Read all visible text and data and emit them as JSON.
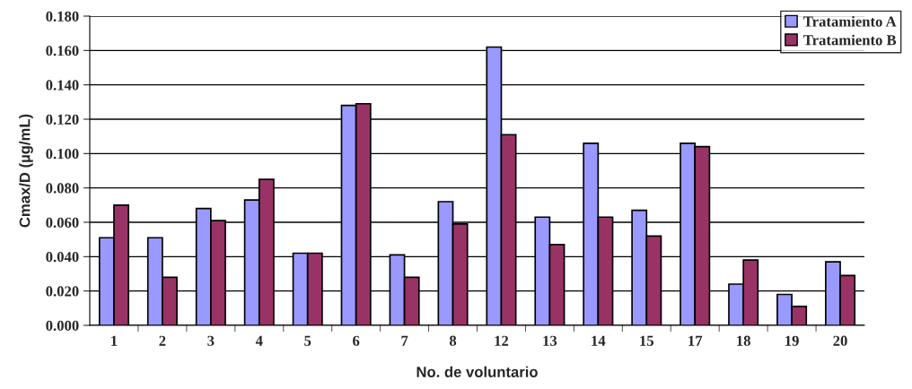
{
  "chart_data": {
    "type": "bar",
    "xlabel": "No. de voluntario",
    "ylabel": "Cmax/D (µg/mL)",
    "categories": [
      "1",
      "2",
      "3",
      "4",
      "5",
      "6",
      "7",
      "8",
      "12",
      "13",
      "14",
      "15",
      "17",
      "18",
      "19",
      "20"
    ],
    "series": [
      {
        "name": "Tratamiento A",
        "color": "#9999ff",
        "values": [
          0.051,
          0.051,
          0.068,
          0.073,
          0.042,
          0.128,
          0.041,
          0.072,
          0.162,
          0.063,
          0.106,
          0.067,
          0.106,
          0.024,
          0.018,
          0.037
        ]
      },
      {
        "name": "Tratamiento B",
        "color": "#993366",
        "values": [
          0.07,
          0.028,
          0.061,
          0.085,
          0.042,
          0.129,
          0.028,
          0.059,
          0.111,
          0.047,
          0.063,
          0.052,
          0.104,
          0.038,
          0.011,
          0.029
        ]
      }
    ],
    "ylim": [
      0,
      0.18
    ],
    "yticks": [
      {
        "value": 0,
        "label": "0.000"
      },
      {
        "value": 0.02,
        "label": "0.020"
      },
      {
        "value": 0.04,
        "label": "0.040"
      },
      {
        "value": 0.06,
        "label": "0.060"
      },
      {
        "value": 0.08,
        "label": "0.080"
      },
      {
        "value": 0.1,
        "label": "0.100"
      },
      {
        "value": 0.12,
        "label": "0.120"
      },
      {
        "value": 0.14,
        "label": "0.140"
      },
      {
        "value": 0.16,
        "label": "0.160"
      },
      {
        "value": 0.18,
        "label": "0.180"
      }
    ],
    "grid": "y",
    "legend": "top right"
  }
}
